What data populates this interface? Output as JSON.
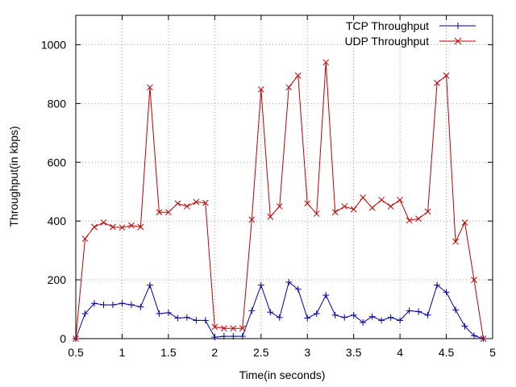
{
  "chart_data": {
    "type": "line",
    "title": "",
    "xlabel": "Time(in seconds)",
    "ylabel": "Throughput(in kbps)",
    "xlim": [
      0.5,
      5.0
    ],
    "ylim": [
      0,
      1100
    ],
    "xticks": [
      0.5,
      1.0,
      1.5,
      2.0,
      2.5,
      3.0,
      3.5,
      4.0,
      4.5,
      5.0
    ],
    "xtick_labels": [
      "0.5",
      "1",
      "1.5",
      "2",
      "2.5",
      "3",
      "3.5",
      "4",
      "4.5",
      "5"
    ],
    "yticks": [
      0,
      200,
      400,
      600,
      800,
      1000
    ],
    "ytick_labels": [
      "0",
      "200",
      "400",
      "600",
      "800",
      "1000"
    ],
    "grid": true,
    "legend_position": "top-right",
    "x": [
      0.5,
      0.6,
      0.7,
      0.8,
      0.9,
      1.0,
      1.1,
      1.2,
      1.3,
      1.4,
      1.5,
      1.6,
      1.7,
      1.8,
      1.9,
      2.0,
      2.1,
      2.2,
      2.3,
      2.4,
      2.5,
      2.6,
      2.7,
      2.8,
      2.9,
      3.0,
      3.1,
      3.2,
      3.3,
      3.4,
      3.5,
      3.6,
      3.7,
      3.8,
      3.9,
      4.0,
      4.1,
      4.2,
      4.3,
      4.4,
      4.5,
      4.6,
      4.7,
      4.8,
      4.9
    ],
    "series": [
      {
        "name": "TCP Throughput",
        "color": "#0000a0",
        "marker": "plus",
        "values": [
          0,
          85,
          120,
          115,
          115,
          120,
          115,
          108,
          182,
          85,
          88,
          70,
          72,
          62,
          62,
          5,
          8,
          8,
          8,
          95,
          182,
          90,
          72,
          192,
          168,
          70,
          85,
          148,
          80,
          72,
          80,
          55,
          75,
          62,
          72,
          62,
          95,
          92,
          80,
          182,
          158,
          98,
          42,
          10,
          0
        ]
      },
      {
        "name": "UDP Throughput",
        "color": "#c00000",
        "marker": "cross",
        "values": [
          0,
          340,
          380,
          395,
          380,
          378,
          385,
          380,
          855,
          430,
          430,
          460,
          450,
          465,
          462,
          40,
          35,
          35,
          35,
          405,
          848,
          415,
          450,
          855,
          895,
          460,
          425,
          940,
          430,
          450,
          440,
          480,
          445,
          472,
          450,
          472,
          402,
          408,
          432,
          870,
          895,
          330,
          395,
          200,
          0
        ]
      }
    ]
  }
}
